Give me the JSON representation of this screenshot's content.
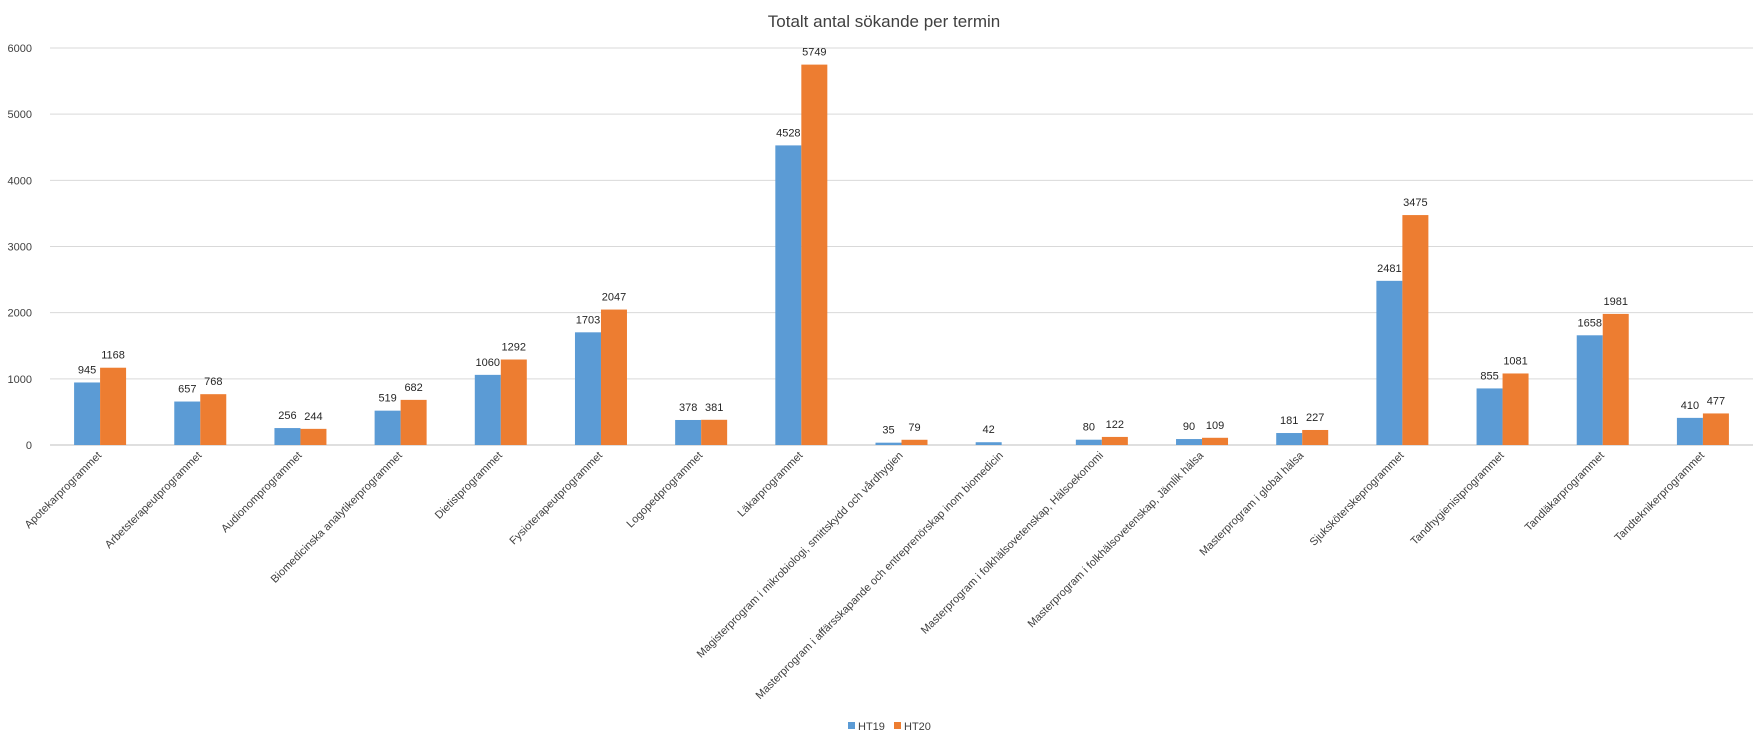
{
  "chart_data": {
    "type": "bar",
    "title": "Totalt antal sökande per termin",
    "xlabel": "",
    "ylabel": "",
    "ylim": [
      0,
      6000
    ],
    "yticks": [
      0,
      1000,
      2000,
      3000,
      4000,
      5000,
      6000
    ],
    "grid": true,
    "legend": "bottom-center",
    "categories": [
      "Apotekarprogrammet",
      "Arbetsterapeutprogrammet",
      "Audionomprogrammet",
      "Biomedicinska analytikerprogrammet",
      "Dietistprogrammet",
      "Fysioterapeutprogrammet",
      "Logopedprogrammet",
      "Läkarprogrammet",
      "Magisterprogram i mikrobiologi, smittskydd och vårdhygien",
      "Masterprogram i affärsskapande och entreprenörskap inom biomedicin",
      "Masterprogram i folkhälsovetenskap, Hälsoekonomi",
      "Masterprogram i folkhälsovetenskap, Jämlik hälsa",
      "Masterprogram i global hälsa",
      "Sjuksköterskeprogrammet",
      "Tandhygienistprogrammet",
      "Tandläkarprogrammet",
      "Tandteknikerprogrammet"
    ],
    "series": [
      {
        "name": "HT19",
        "color": "#5b9bd5",
        "values": [
          945,
          657,
          256,
          519,
          1060,
          1703,
          378,
          4528,
          35,
          42,
          80,
          90,
          181,
          2481,
          855,
          1658,
          410
        ]
      },
      {
        "name": "HT20",
        "color": "#ed7d31",
        "values": [
          1168,
          768,
          244,
          682,
          1292,
          2047,
          381,
          5749,
          79,
          null,
          122,
          109,
          227,
          3475,
          1081,
          1981,
          477
        ]
      }
    ]
  }
}
